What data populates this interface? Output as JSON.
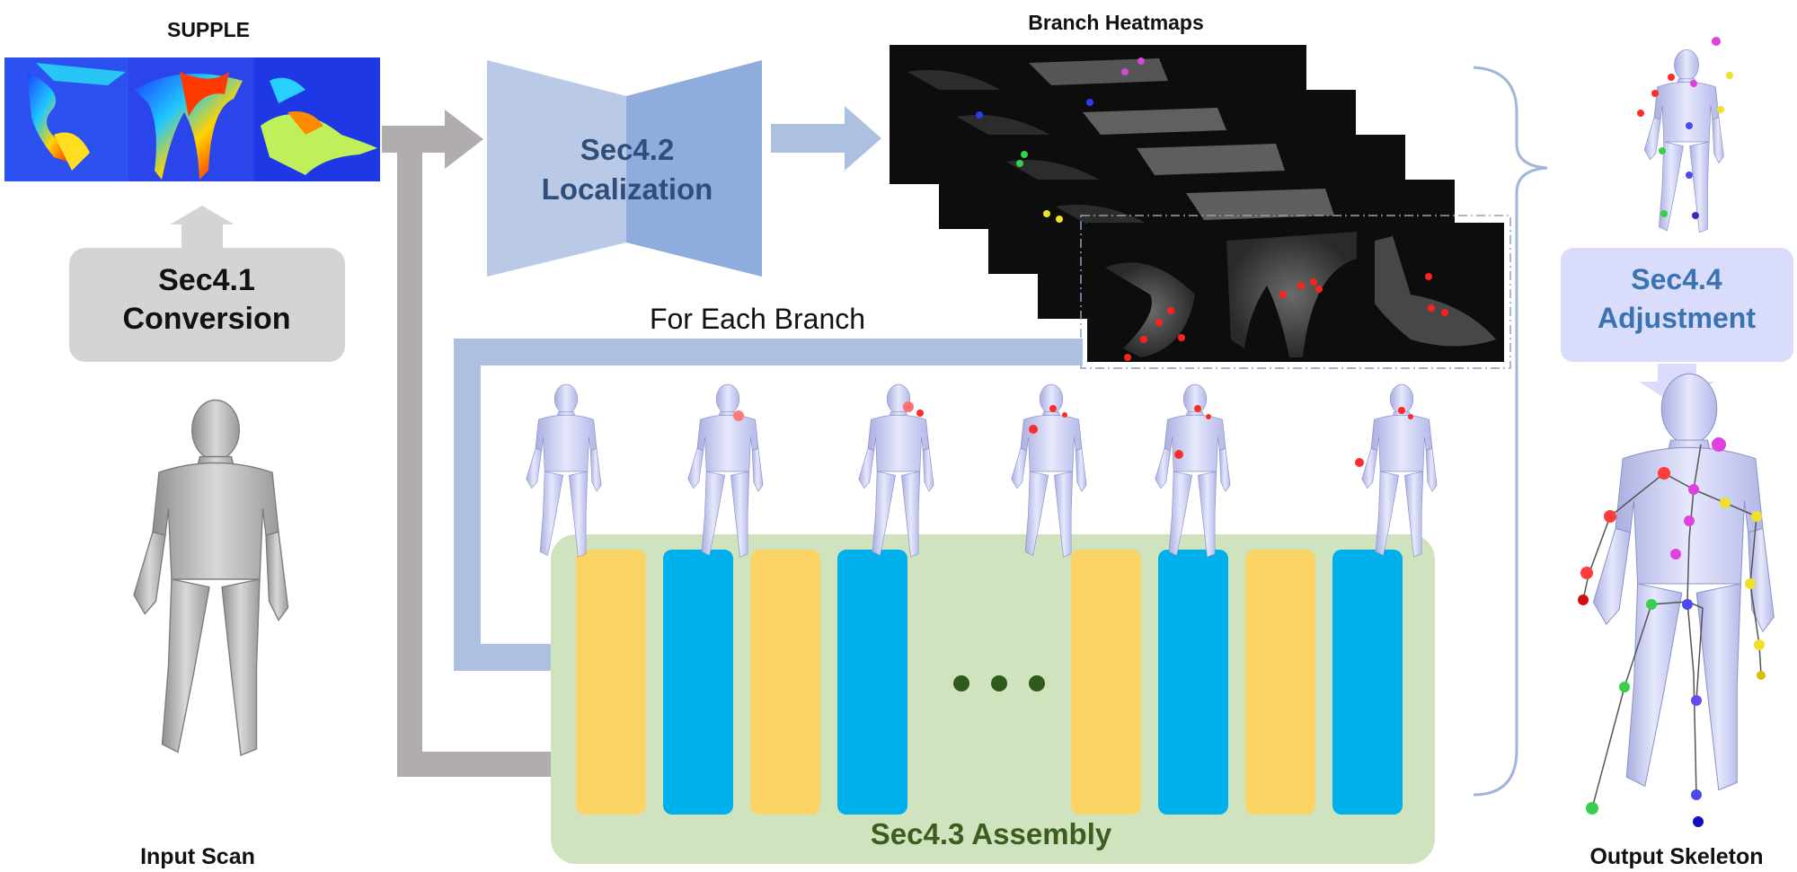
{
  "labels": {
    "supple": "SUPPLE",
    "branch_heatmaps": "Branch Heatmaps",
    "input_scan": "Input Scan",
    "output_skeleton": "Output Skeleton",
    "for_each_branch": "For Each Branch"
  },
  "modules": {
    "conversion": {
      "line1": "Sec4.1",
      "line2": "Conversion"
    },
    "localization": {
      "line1": "Sec4.2",
      "line2": "Localization"
    },
    "assembly": {
      "title": "Sec4.3 Assembly"
    },
    "adjustment": {
      "line1": "Sec4.4",
      "line2": "Adjustment"
    }
  },
  "colors": {
    "gray_box": "#d4d4d4",
    "gray_arrow": "#b1adad",
    "light_blue": "#aec0e2",
    "localization_left": "#b9c9e6",
    "localization_right": "#90acdc",
    "localization_text": "#2f4e7c",
    "assembly_bg": "#cfe3bf",
    "assembly_text": "#3b5d1e",
    "block_yellow": "#fcd465",
    "block_blue": "#00b0ec",
    "adjust_box": "#d9dcfa",
    "adjust_text": "#3a73b1",
    "brace": "#9fb6db",
    "heatmap_bg": "#0d0d0d",
    "mesh": "#c9cdf2"
  },
  "icons": [
    "ellipsis-icon"
  ]
}
